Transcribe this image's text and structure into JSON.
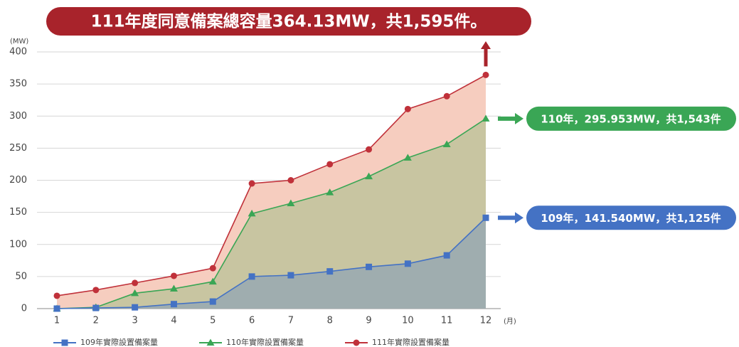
{
  "chart_data": {
    "type": "area",
    "title": "111年度同意備案總容量364.13MW，共1,595件。",
    "y_label": "(MW)",
    "x_label": "(月)",
    "categories": [
      "1",
      "2",
      "3",
      "4",
      "5",
      "6",
      "7",
      "8",
      "9",
      "10",
      "11",
      "12"
    ],
    "series": [
      {
        "name": "111年實際設置備案量",
        "color": "#c0313a",
        "area_color": "#f6cdbf",
        "marker": "circle",
        "values": [
          20,
          29,
          40,
          51,
          63,
          195,
          200,
          225,
          248,
          311,
          331,
          364.13
        ]
      },
      {
        "name": "110年實際設置備案量",
        "color": "#3aa655",
        "area_color": "#c8c5a1",
        "marker": "triangle",
        "values": [
          0,
          2,
          24,
          31,
          42,
          148,
          164,
          181,
          206,
          235,
          256,
          295.953
        ]
      },
      {
        "name": "109年實際設置備案量",
        "color": "#4472c4",
        "area_color": "#9fadaf",
        "marker": "square",
        "values": [
          0,
          1,
          2,
          7,
          11,
          50,
          52,
          58,
          65,
          70,
          83,
          141.54
        ]
      }
    ],
    "annotations": [
      {
        "text": "110年，295.953MW，共1,543件",
        "color": "#3aa655"
      },
      {
        "text": "109年，141.540MW，共1,125件",
        "color": "#4472c4"
      }
    ],
    "ylim": [
      0,
      400
    ],
    "yticks": [
      0,
      50,
      100,
      150,
      200,
      250,
      300,
      350,
      400
    ],
    "grid": true
  }
}
